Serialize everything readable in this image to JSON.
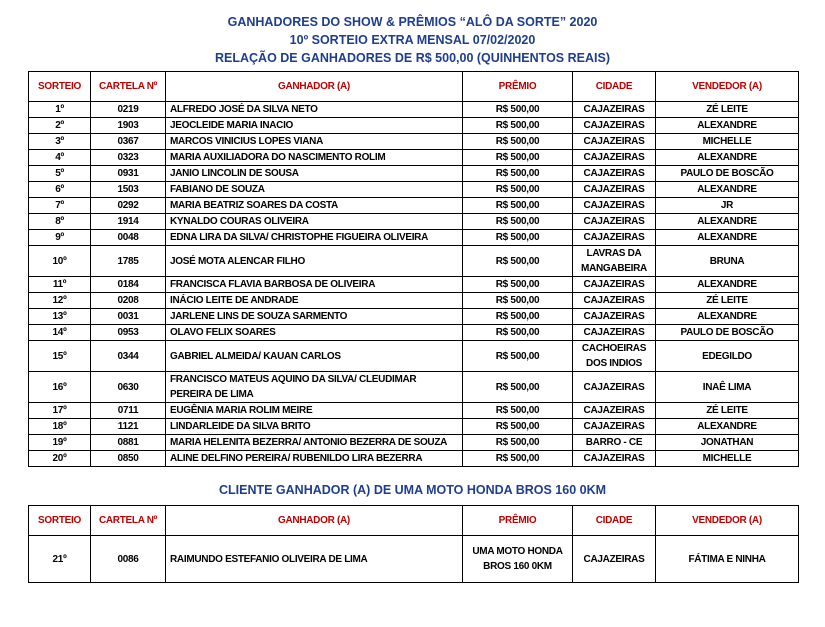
{
  "header": {
    "lines": [
      "GANHADORES DO SHOW & PRÊMIOS “ALÔ DA SORTE” 2020",
      "10º SORTEIO EXTRA MENSAL 07/02/2020",
      "RELAÇÃO DE GANHADORES DE R$ 500,00 (QUINHENTOS REAIS)"
    ]
  },
  "table1": {
    "headers": [
      "SORTEIO",
      "CARTELA Nº",
      "GANHADOR (A)",
      "PRÊMIO",
      "CIDADE",
      "VENDEDOR (A)"
    ],
    "rows": [
      [
        "1º",
        "0219",
        "ALFREDO JOSÉ DA SILVA NETO",
        "R$ 500,00",
        "CAJAZEIRAS",
        "ZÉ LEITE"
      ],
      [
        "2º",
        "1903",
        "JEOCLEIDE MARIA INACIO",
        "R$ 500,00",
        "CAJAZEIRAS",
        "ALEXANDRE"
      ],
      [
        "3º",
        "0367",
        "MARCOS VINICIUS LOPES VIANA",
        "R$ 500,00",
        "CAJAZEIRAS",
        "MICHELLE"
      ],
      [
        "4º",
        "0323",
        "MARIA AUXILIADORA DO NASCIMENTO ROLIM",
        "R$ 500,00",
        "CAJAZEIRAS",
        "ALEXANDRE"
      ],
      [
        "5º",
        "0931",
        "JANIO LINCOLIN DE SOUSA",
        "R$ 500,00",
        "CAJAZEIRAS",
        "PAULO DE BOSCÃO"
      ],
      [
        "6º",
        "1503",
        "FABIANO DE SOUZA",
        "R$ 500,00",
        "CAJAZEIRAS",
        "ALEXANDRE"
      ],
      [
        "7º",
        "0292",
        "MARIA BEATRIZ SOARES DA COSTA",
        "R$ 500,00",
        "CAJAZEIRAS",
        "JR"
      ],
      [
        "8º",
        "1914",
        "KYNALDO COURAS OLIVEIRA",
        "R$ 500,00",
        "CAJAZEIRAS",
        "ALEXANDRE"
      ],
      [
        "9º",
        "0048",
        "EDNA LIRA DA SILVA/ CHRISTOPHE FIGUEIRA OLIVEIRA",
        "R$ 500,00",
        "CAJAZEIRAS",
        "ALEXANDRE"
      ],
      [
        "10º",
        "1785",
        "JOSÉ MOTA ALENCAR FILHO",
        "R$ 500,00",
        "LAVRAS DA MANGABEIRA",
        "BRUNA"
      ],
      [
        "11º",
        "0184",
        "FRANCISCA FLAVIA BARBOSA DE OLIVEIRA",
        "R$ 500,00",
        "CAJAZEIRAS",
        "ALEXANDRE"
      ],
      [
        "12º",
        "0208",
        "INÁCIO LEITE DE ANDRADE",
        "R$ 500,00",
        "CAJAZEIRAS",
        "ZÉ LEITE"
      ],
      [
        "13º",
        "0031",
        "JARLENE LINS DE SOUZA SARMENTO",
        "R$ 500,00",
        "CAJAZEIRAS",
        "ALEXANDRE"
      ],
      [
        "14º",
        "0953",
        "OLAVO FELIX SOARES",
        "R$ 500,00",
        "CAJAZEIRAS",
        "PAULO DE BOSCÃO"
      ],
      [
        "15º",
        "0344",
        "GABRIEL ALMEIDA/ KAUAN CARLOS",
        "R$ 500,00",
        "CACHOEIRAS DOS INDIOS",
        "EDEGILDO"
      ],
      [
        "16º",
        "0630",
        "FRANCISCO MATEUS AQUINO DA SILVA/ CLEUDIMAR PEREIRA DE LIMA",
        "R$ 500,00",
        "CAJAZEIRAS",
        "INAÊ LIMA"
      ],
      [
        "17º",
        "0711",
        "EUGÊNIA MARIA ROLIM MEIRE",
        "R$ 500,00",
        "CAJAZEIRAS",
        "ZÉ LEITE"
      ],
      [
        "18º",
        "1121",
        "LINDARLEIDE DA SILVA BRITO",
        "R$ 500,00",
        "CAJAZEIRAS",
        "ALEXANDRE"
      ],
      [
        "19º",
        "0881",
        "MARIA HELENITA BEZERRA/ ANTONIO BEZERRA DE SOUZA",
        "R$ 500,00",
        "BARRO - CE",
        "JONATHAN"
      ],
      [
        "20º",
        "0850",
        "ALINE DELFINO PEREIRA/ RUBENILDO LIRA BEZERRA",
        "R$ 500,00",
        "CAJAZEIRAS",
        "MICHELLE"
      ]
    ]
  },
  "section2": {
    "title": "CLIENTE GANHADOR (A) DE UMA MOTO HONDA BROS 160 0KM"
  },
  "table2": {
    "headers": [
      "SORTEIO",
      "CARTELA Nº",
      "GANHADOR (A)",
      "PRÊMIO",
      "CIDADE",
      "VENDEDOR (A)"
    ],
    "rows": [
      [
        "21º",
        "0086",
        "RAIMUNDO ESTEFANIO OLIVEIRA DE LIMA",
        "UMA MOTO HONDA BROS 160 0KM",
        "CAJAZEIRAS",
        "FÁTIMA E NINHA"
      ]
    ]
  }
}
